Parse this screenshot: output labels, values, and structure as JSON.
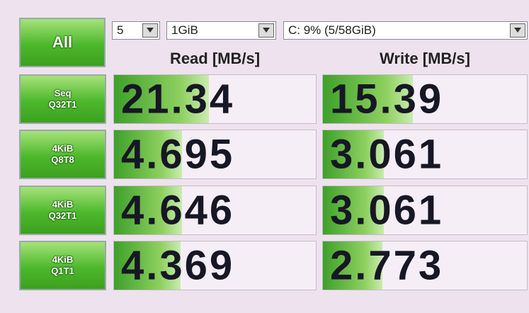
{
  "controls": {
    "count": "5",
    "size": "1GiB",
    "drive": "C: 9% (5/58GiB)"
  },
  "all_button": "All",
  "headers": {
    "read": "Read [MB/s]",
    "write": "Write [MB/s]"
  },
  "rows": [
    {
      "label": [
        "Seq",
        "Q32T1"
      ],
      "read": 21.34,
      "write": 15.39
    },
    {
      "label": [
        "4KiB",
        "Q8T8"
      ],
      "read": 4.695,
      "write": 3.061
    },
    {
      "label": [
        "4KiB",
        "Q32T1"
      ],
      "read": 4.646,
      "write": 3.061
    },
    {
      "label": [
        "4KiB",
        "Q1T1"
      ],
      "read": 4.369,
      "write": 2.773
    }
  ]
}
